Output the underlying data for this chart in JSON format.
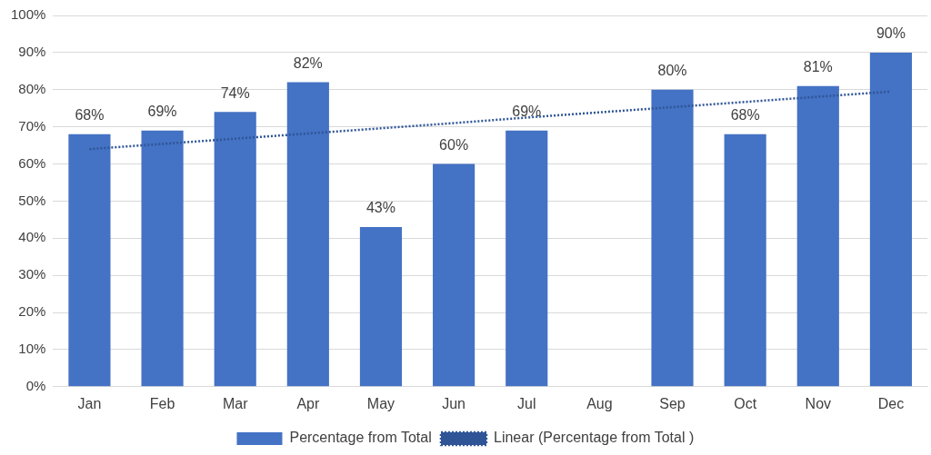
{
  "chart_data": {
    "type": "bar",
    "categories": [
      "Jan",
      "Feb",
      "Mar",
      "Apr",
      "May",
      "Jun",
      "Jul",
      "Aug",
      "Sep",
      "Oct",
      "Nov",
      "Dec"
    ],
    "series": [
      {
        "name": "Percentage from Total",
        "type": "bar",
        "color": "#4472c4",
        "values": [
          68,
          69,
          74,
          82,
          43,
          60,
          69,
          null,
          80,
          68,
          81,
          90
        ],
        "value_labels": [
          "68%",
          "69%",
          "74%",
          "82%",
          "43%",
          "60%",
          "69%",
          null,
          "80%",
          "68%",
          "81%",
          "90%"
        ]
      },
      {
        "name": "Linear (Percentage from Total )",
        "type": "line",
        "color": "#2f5597",
        "line_style": "dotted",
        "marker": "none",
        "values": [
          64,
          65.4,
          66.8,
          68.2,
          69.6,
          71,
          72.5,
          73.9,
          75.3,
          76.7,
          78.1,
          79.5
        ]
      }
    ],
    "ylim": [
      0,
      100
    ],
    "yticks": [
      {
        "value": 0,
        "label": "0%"
      },
      {
        "value": 10,
        "label": "10%"
      },
      {
        "value": 20,
        "label": "20%"
      },
      {
        "value": 30,
        "label": "30%"
      },
      {
        "value": 40,
        "label": "40%"
      },
      {
        "value": 50,
        "label": "50%"
      },
      {
        "value": 60,
        "label": "60%"
      },
      {
        "value": 70,
        "label": "70%"
      },
      {
        "value": 80,
        "label": "80%"
      },
      {
        "value": 90,
        "label": "90%"
      },
      {
        "value": 100,
        "label": "100%"
      }
    ],
    "grid": "y",
    "legend": "bottom"
  }
}
